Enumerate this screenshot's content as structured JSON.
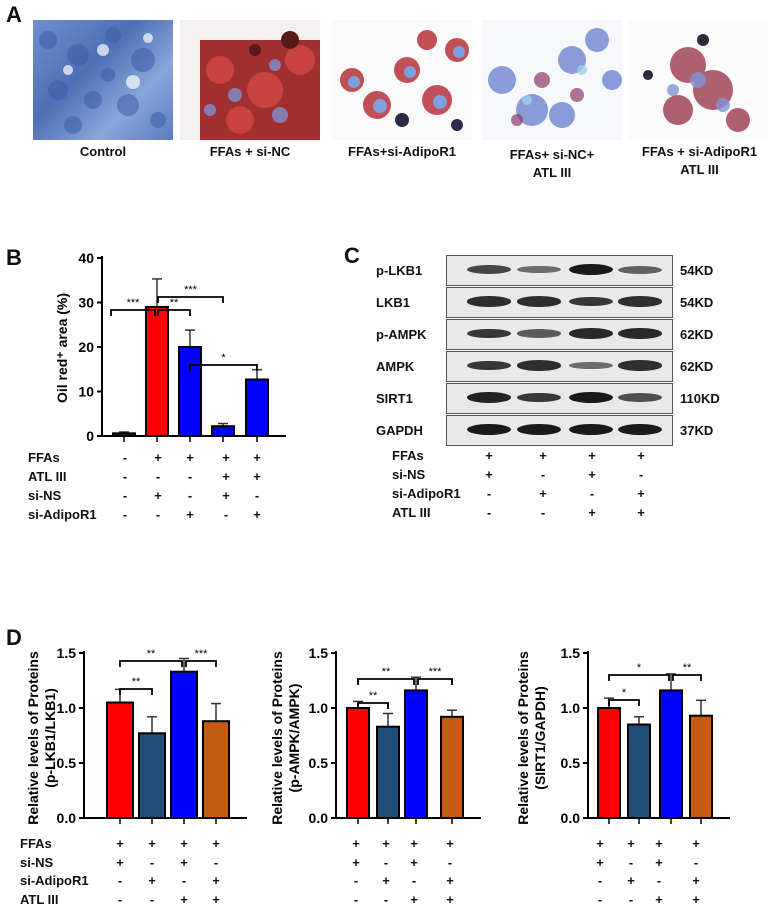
{
  "panelA": {
    "letter": "A",
    "images": [
      {
        "caption_line1": "Control",
        "caption_line2": "",
        "stain": "blue"
      },
      {
        "caption_line1": "FFAs + si-NC",
        "caption_line2": "",
        "stain": "red-heavy"
      },
      {
        "caption_line1": "FFAs+si-AdipoR1",
        "caption_line2": "",
        "stain": "red-moderate"
      },
      {
        "caption_line1": "FFAs+ si-NC+",
        "caption_line2": "ATL III",
        "stain": "blue-light"
      },
      {
        "caption_line1": "FFAs + si-AdipoR1",
        "caption_line2": "ATL III",
        "stain": "mixed"
      }
    ]
  },
  "panelB": {
    "letter": "B",
    "table": {
      "rows": [
        {
          "label": "FFAs",
          "signs": [
            "-",
            "+",
            "+",
            "+",
            "+"
          ]
        },
        {
          "label": "ATL III",
          "signs": [
            "-",
            "-",
            "-",
            "+",
            "+"
          ]
        },
        {
          "label": "si-NS",
          "signs": [
            "-",
            "+",
            "-",
            "+",
            "-"
          ]
        },
        {
          "label": "si-AdipoR1",
          "signs": [
            "-",
            "-",
            "+",
            "-",
            "+"
          ]
        }
      ]
    }
  },
  "panelC": {
    "letter": "C",
    "blots": [
      {
        "protein": "p-LKB1",
        "kd": "54KD",
        "intensity": [
          0.7,
          0.45,
          1.0,
          0.5
        ]
      },
      {
        "protein": "LKB1",
        "kd": "54KD",
        "intensity": [
          0.85,
          0.85,
          0.8,
          0.85
        ]
      },
      {
        "protein": "p-AMPK",
        "kd": "62KD",
        "intensity": [
          0.8,
          0.55,
          0.9,
          0.9
        ]
      },
      {
        "protein": "AMPK",
        "kd": "62KD",
        "intensity": [
          0.8,
          0.85,
          0.45,
          0.85
        ]
      },
      {
        "protein": "SIRT1",
        "kd": "110KD",
        "intensity": [
          0.95,
          0.8,
          1.0,
          0.65
        ]
      },
      {
        "protein": "GAPDH",
        "kd": "37KD",
        "intensity": [
          1.0,
          1.0,
          1.0,
          1.0
        ]
      }
    ],
    "table": {
      "rows": [
        {
          "label": "FFAs",
          "signs": [
            "+",
            "+",
            "+",
            "+"
          ]
        },
        {
          "label": "si-NS",
          "signs": [
            "+",
            "-",
            "+",
            "-"
          ]
        },
        {
          "label": "si-AdipoR1",
          "signs": [
            "-",
            "+",
            "-",
            "+"
          ]
        },
        {
          "label": "ATL III",
          "signs": [
            "-",
            "-",
            "+",
            "+"
          ]
        }
      ]
    }
  },
  "panelD": {
    "letter": "D",
    "table": {
      "rows": [
        {
          "label": "FFAs",
          "signs": [
            "+",
            "+",
            "+",
            "+"
          ]
        },
        {
          "label": "si-NS",
          "signs": [
            "+",
            "-",
            "+",
            "-"
          ]
        },
        {
          "label": "si-AdipoR1",
          "signs": [
            "-",
            "+",
            "-",
            "+"
          ]
        },
        {
          "label": "ATL III",
          "signs": [
            "-",
            "-",
            "+",
            "+"
          ]
        }
      ]
    }
  },
  "colors": {
    "red": "#ff0000",
    "navy": "#1f4e79",
    "blue": "#0000ff",
    "orange": "#c55a11",
    "control": "#222222"
  },
  "chart_data": [
    {
      "id": "B",
      "type": "bar",
      "title": "",
      "xlabel": "",
      "ylabel": "Oil red⁺ area (%)",
      "ylim": [
        0,
        40
      ],
      "yticks": [
        0,
        10,
        20,
        30,
        40
      ],
      "categories": [
        "Control",
        "FFAs+si-NS",
        "FFAs+si-AdipoR1",
        "FFAs+ATL III+si-NS",
        "FFAs+ATL III+si-AdipoR1"
      ],
      "values": [
        0.6,
        29.0,
        20.0,
        2.2,
        12.7
      ],
      "errors": [
        0.3,
        6.3,
        3.8,
        0.6,
        2.2
      ],
      "bar_colors": [
        "#222222",
        "#ff0000",
        "#0000ff",
        "#0000ff",
        "#0000ff"
      ],
      "significance": [
        {
          "from": 0,
          "to": 1,
          "label": "***"
        },
        {
          "from": 1,
          "to": 2,
          "label": "**"
        },
        {
          "from": 1,
          "to": 3,
          "label": "***"
        },
        {
          "from": 2,
          "to": 4,
          "label": "*"
        }
      ],
      "grid": false,
      "legend": "none"
    },
    {
      "id": "D1",
      "type": "bar",
      "title": "",
      "xlabel": "",
      "ylabel": "Relative levels of Proteins (p-LKB1/LKB1)",
      "ylabel_line1": "Relative levels of Proteins",
      "ylabel_line2": "(p-LKB1/LKB1)",
      "ylim": [
        0,
        1.5
      ],
      "yticks": [
        0.0,
        0.5,
        1.0,
        1.5
      ],
      "ytick_labels": [
        "0.0",
        "0.5",
        "1.0",
        "1.5"
      ],
      "categories": [
        "FFAs+si-NS",
        "FFAs+si-AdipoR1",
        "FFAs+si-NS+ATL III",
        "FFAs+si-AdipoR1+ATL III"
      ],
      "values": [
        1.05,
        0.77,
        1.33,
        0.88
      ],
      "errors": [
        0.12,
        0.15,
        0.12,
        0.16
      ],
      "bar_colors": [
        "#ff0000",
        "#1f4e79",
        "#0000ff",
        "#c55a11"
      ],
      "significance": [
        {
          "from": 0,
          "to": 1,
          "label": "**"
        },
        {
          "from": 0,
          "to": 2,
          "label": "**"
        },
        {
          "from": 2,
          "to": 3,
          "label": "***"
        }
      ],
      "grid": false,
      "legend": "none"
    },
    {
      "id": "D2",
      "type": "bar",
      "title": "",
      "xlabel": "",
      "ylabel": "Relative levels of Proteins (p-AMPK/AMPK)",
      "ylabel_line1": "Relative levels of Proteins",
      "ylabel_line2": "(p-AMPK/AMPK)",
      "ylim": [
        0,
        1.5
      ],
      "yticks": [
        0.0,
        0.5,
        1.0,
        1.5
      ],
      "ytick_labels": [
        "0.0",
        "0.5",
        "1.0",
        "1.5"
      ],
      "categories": [
        "FFAs+si-NS",
        "FFAs+si-AdipoR1",
        "FFAs+si-NS+ATL III",
        "FFAs+si-AdipoR1+ATL III"
      ],
      "values": [
        1.0,
        0.83,
        1.16,
        0.92
      ],
      "errors": [
        0.06,
        0.12,
        0.12,
        0.06
      ],
      "bar_colors": [
        "#ff0000",
        "#1f4e79",
        "#0000ff",
        "#c55a11"
      ],
      "significance": [
        {
          "from": 0,
          "to": 1,
          "label": "**"
        },
        {
          "from": 0,
          "to": 2,
          "label": "**"
        },
        {
          "from": 2,
          "to": 3,
          "label": "***"
        }
      ],
      "grid": false,
      "legend": "none"
    },
    {
      "id": "D3",
      "type": "bar",
      "title": "",
      "xlabel": "",
      "ylabel": "Relative levels of Proteins (SIRT1/GAPDH)",
      "ylabel_line1": "Relative levels of Proteins",
      "ylabel_line2": "(SIRT1/GAPDH)",
      "ylim": [
        0,
        1.5
      ],
      "yticks": [
        0.0,
        0.5,
        1.0,
        1.5
      ],
      "ytick_labels": [
        "0.0",
        "0.5",
        "1.0",
        "1.5"
      ],
      "categories": [
        "FFAs+si-NS",
        "FFAs+si-AdipoR1",
        "FFAs+si-NS+ATL III",
        "FFAs+si-AdipoR1+ATL III"
      ],
      "values": [
        1.0,
        0.85,
        1.16,
        0.93
      ],
      "errors": [
        0.09,
        0.07,
        0.15,
        0.14
      ],
      "bar_colors": [
        "#ff0000",
        "#1f4e79",
        "#0000ff",
        "#c55a11"
      ],
      "significance": [
        {
          "from": 0,
          "to": 1,
          "label": "*"
        },
        {
          "from": 0,
          "to": 2,
          "label": "*"
        },
        {
          "from": 2,
          "to": 3,
          "label": "**"
        }
      ],
      "grid": false,
      "legend": "none"
    }
  ]
}
